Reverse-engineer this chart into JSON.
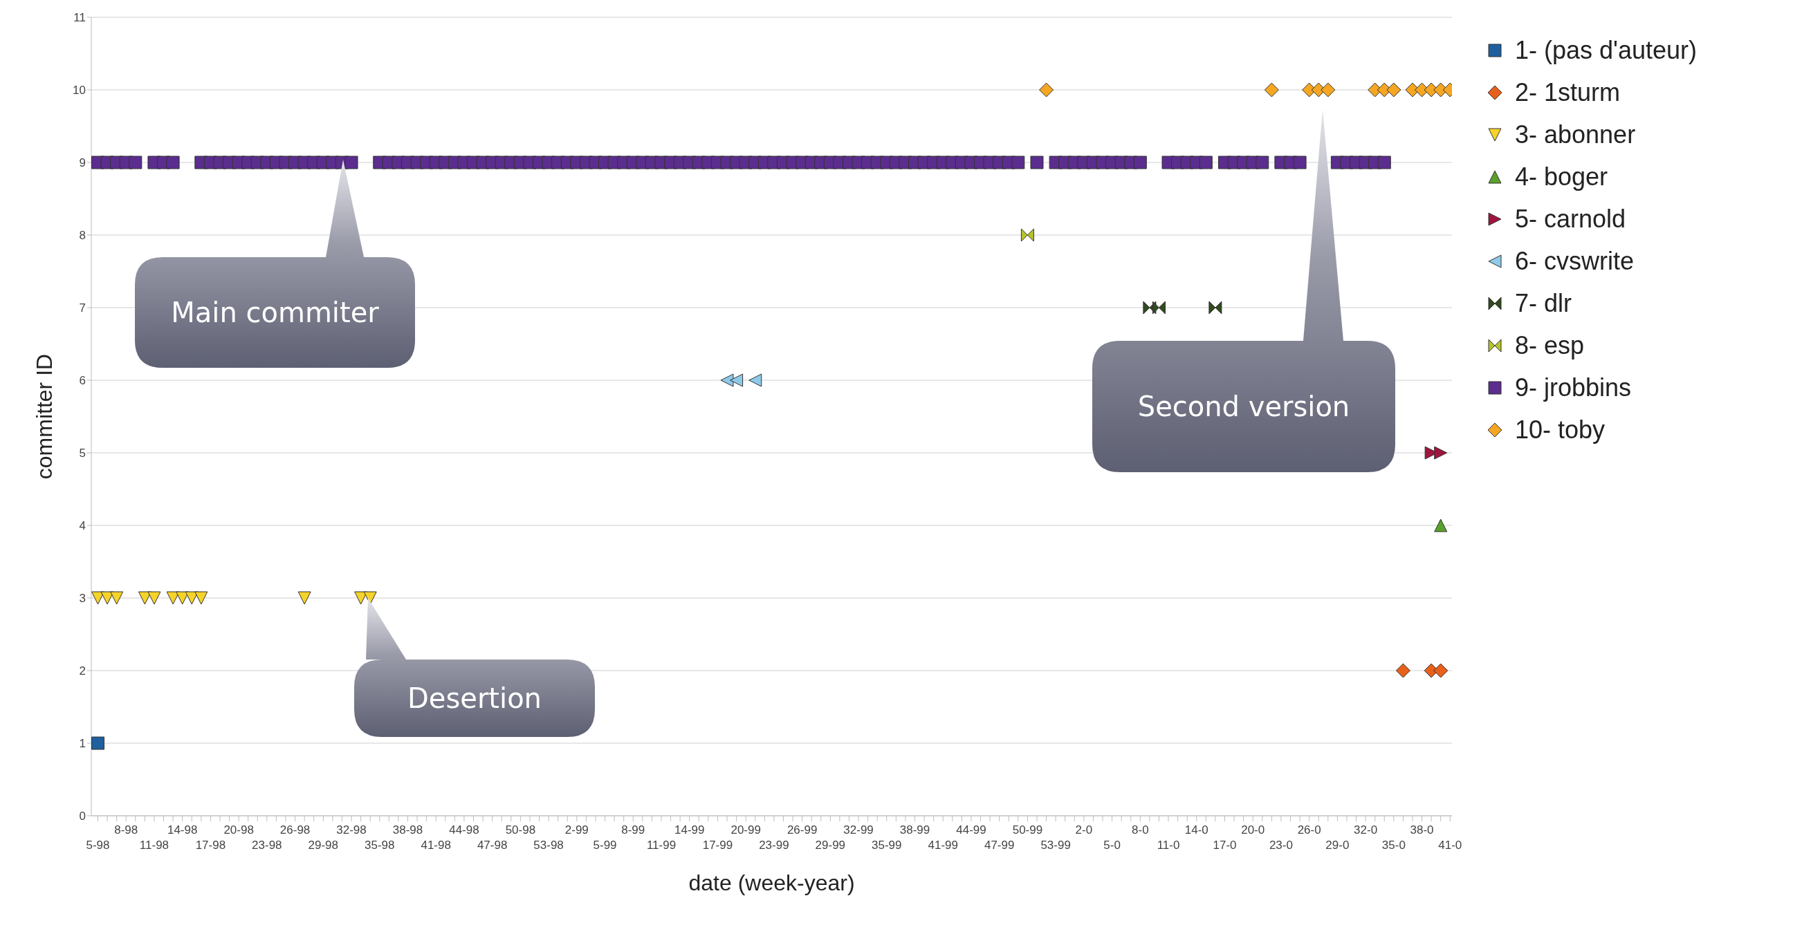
{
  "chart_data": {
    "type": "scatter",
    "xlabel": "date (week-year)",
    "ylabel": "committer ID",
    "categories": [
      "5-98",
      null,
      null,
      "8-98",
      null,
      null,
      "11-98",
      null,
      null,
      "14-98",
      null,
      null,
      "17-98",
      null,
      null,
      "20-98",
      null,
      null,
      "23-98",
      null,
      null,
      "26-98",
      null,
      null,
      "29-98",
      null,
      null,
      "32-98",
      null,
      null,
      "35-98",
      null,
      null,
      "38-98",
      null,
      null,
      "41-98",
      null,
      null,
      "44-98",
      null,
      null,
      "47-98",
      null,
      null,
      "50-98",
      null,
      null,
      "53-98",
      null,
      null,
      "2-99",
      null,
      null,
      "5-99",
      null,
      null,
      "8-99",
      null,
      null,
      "11-99",
      null,
      null,
      "14-99",
      null,
      null,
      "17-99",
      null,
      null,
      "20-99",
      null,
      null,
      "23-99",
      null,
      null,
      "26-99",
      null,
      null,
      "29-99",
      null,
      null,
      "32-99",
      null,
      null,
      "35-99",
      null,
      null,
      "38-99",
      null,
      null,
      "41-99",
      null,
      null,
      "44-99",
      null,
      null,
      "47-99",
      null,
      null,
      "50-99",
      null,
      null,
      "53-99",
      null,
      null,
      "2-0",
      null,
      null,
      "5-0",
      null,
      null,
      "8-0",
      null,
      null,
      "11-0",
      null,
      null,
      "14-0",
      null,
      null,
      "17-0",
      null,
      null,
      "20-0",
      null,
      null,
      "23-0",
      null,
      null,
      "26-0",
      null,
      null,
      "29-0",
      null,
      null,
      "32-0",
      null,
      null,
      "35-0",
      null,
      null,
      "38-0",
      null,
      null,
      "41-0"
    ],
    "ylim": [
      0,
      11
    ],
    "yticks": [
      0,
      1,
      2,
      3,
      4,
      5,
      6,
      7,
      8,
      9,
      10,
      11
    ],
    "grid": "y",
    "legend": "top right",
    "series": [
      {
        "name": "1- (pas d'auteur)",
        "color": "#1f5f9e",
        "marker": "square",
        "values": [
          1,
          null,
          null,
          null,
          null,
          null,
          null,
          null,
          null,
          null,
          null,
          null,
          null,
          null,
          null,
          null,
          null,
          null,
          null,
          null,
          null,
          null,
          null,
          null,
          null,
          null,
          null,
          null,
          null,
          null,
          null,
          null,
          null,
          null,
          null,
          null,
          null,
          null,
          null,
          null,
          null,
          null,
          null,
          null,
          null,
          null,
          null,
          null,
          null,
          null,
          null,
          null,
          null,
          null,
          null,
          null,
          null,
          null,
          null,
          null,
          null,
          null,
          null,
          null,
          null,
          null,
          null,
          null,
          null,
          null,
          null,
          null,
          null,
          null,
          null,
          null,
          null,
          null,
          null,
          null,
          null,
          null,
          null,
          null,
          null,
          null,
          null,
          null,
          null,
          null,
          null,
          null,
          null,
          null,
          null,
          null,
          null,
          null,
          null,
          null,
          null,
          null,
          null,
          null,
          null,
          null,
          null,
          null,
          null,
          null,
          null,
          null,
          null,
          null,
          null,
          null,
          null,
          null,
          null,
          null,
          null,
          null,
          null,
          null,
          null,
          null,
          null,
          null,
          null,
          null,
          null,
          null,
          null,
          null,
          null,
          null,
          null,
          null,
          null,
          null,
          null,
          null,
          null,
          null,
          null
        ]
      },
      {
        "name": "2- 1sturm",
        "color": "#e8601c",
        "marker": "diamond",
        "values": [
          null,
          null,
          null,
          null,
          null,
          null,
          null,
          null,
          null,
          null,
          null,
          null,
          null,
          null,
          null,
          null,
          null,
          null,
          null,
          null,
          null,
          null,
          null,
          null,
          null,
          null,
          null,
          null,
          null,
          null,
          null,
          null,
          null,
          null,
          null,
          null,
          null,
          null,
          null,
          null,
          null,
          null,
          null,
          null,
          null,
          null,
          null,
          null,
          null,
          null,
          null,
          null,
          null,
          null,
          null,
          null,
          null,
          null,
          null,
          null,
          null,
          null,
          null,
          null,
          null,
          null,
          null,
          null,
          null,
          null,
          null,
          null,
          null,
          null,
          null,
          null,
          null,
          null,
          null,
          null,
          null,
          null,
          null,
          null,
          null,
          null,
          null,
          null,
          null,
          null,
          null,
          null,
          null,
          null,
          null,
          null,
          null,
          null,
          null,
          null,
          null,
          null,
          null,
          null,
          null,
          null,
          null,
          null,
          null,
          null,
          null,
          null,
          null,
          null,
          null,
          null,
          null,
          null,
          null,
          null,
          null,
          null,
          null,
          null,
          null,
          null,
          null,
          null,
          null,
          null,
          null,
          null,
          null,
          null,
          null,
          null,
          null,
          null,
          null,
          2,
          null,
          null,
          2,
          2,
          null
        ]
      },
      {
        "name": "3- abonner",
        "color": "#f5d328",
        "marker": "triangle-down",
        "values": [
          3,
          3,
          3,
          null,
          null,
          3,
          3,
          null,
          3,
          3,
          3,
          3,
          null,
          null,
          null,
          null,
          null,
          null,
          null,
          null,
          null,
          null,
          3,
          null,
          null,
          null,
          null,
          null,
          3,
          3,
          null,
          null,
          null,
          null,
          null,
          null,
          null,
          null,
          null,
          null,
          null,
          null,
          null,
          null,
          null,
          null,
          null,
          null,
          null,
          null,
          null,
          null,
          null,
          null,
          null,
          null,
          null,
          null,
          null,
          null,
          null,
          null,
          null,
          null,
          null,
          null,
          null,
          null,
          null,
          null,
          null,
          null,
          null,
          null,
          null,
          null,
          null,
          null,
          null,
          null,
          null,
          null,
          null,
          null,
          null,
          null,
          null,
          null,
          null,
          null,
          null,
          null,
          null,
          null,
          null,
          null,
          null,
          null,
          null,
          null,
          null,
          null,
          null,
          null,
          null,
          null,
          null,
          null,
          null,
          null,
          null,
          null,
          null,
          null,
          null,
          null,
          null,
          null,
          null,
          null,
          null,
          null,
          null,
          null,
          null,
          null,
          null,
          null,
          null,
          null,
          null,
          null,
          null,
          null,
          null,
          null,
          null,
          null,
          null,
          null,
          null,
          null,
          null,
          null,
          null
        ]
      },
      {
        "name": "4- boger",
        "color": "#5aa02c",
        "marker": "triangle",
        "values": [
          null,
          null,
          null,
          null,
          null,
          null,
          null,
          null,
          null,
          null,
          null,
          null,
          null,
          null,
          null,
          null,
          null,
          null,
          null,
          null,
          null,
          null,
          null,
          null,
          null,
          null,
          null,
          null,
          null,
          null,
          null,
          null,
          null,
          null,
          null,
          null,
          null,
          null,
          null,
          null,
          null,
          null,
          null,
          null,
          null,
          null,
          null,
          null,
          null,
          null,
          null,
          null,
          null,
          null,
          null,
          null,
          null,
          null,
          null,
          null,
          null,
          null,
          null,
          null,
          null,
          null,
          null,
          null,
          null,
          null,
          null,
          null,
          null,
          null,
          null,
          null,
          null,
          null,
          null,
          null,
          null,
          null,
          null,
          null,
          null,
          null,
          null,
          null,
          null,
          null,
          null,
          null,
          null,
          null,
          null,
          null,
          null,
          null,
          null,
          null,
          null,
          null,
          null,
          null,
          null,
          null,
          null,
          null,
          null,
          null,
          null,
          null,
          null,
          null,
          null,
          null,
          null,
          null,
          null,
          null,
          null,
          null,
          null,
          null,
          null,
          null,
          null,
          null,
          null,
          null,
          null,
          null,
          null,
          null,
          null,
          null,
          null,
          null,
          null,
          null,
          null,
          null,
          null,
          4,
          null
        ]
      },
      {
        "name": "5- carnold",
        "color": "#a0153e",
        "marker": "triangle-right",
        "values": [
          null,
          null,
          null,
          null,
          null,
          null,
          null,
          null,
          null,
          null,
          null,
          null,
          null,
          null,
          null,
          null,
          null,
          null,
          null,
          null,
          null,
          null,
          null,
          null,
          null,
          null,
          null,
          null,
          null,
          null,
          null,
          null,
          null,
          null,
          null,
          null,
          null,
          null,
          null,
          null,
          null,
          null,
          null,
          null,
          null,
          null,
          null,
          null,
          null,
          null,
          null,
          null,
          null,
          null,
          null,
          null,
          null,
          null,
          null,
          null,
          null,
          null,
          null,
          null,
          null,
          null,
          null,
          null,
          null,
          null,
          null,
          null,
          null,
          null,
          null,
          null,
          null,
          null,
          null,
          null,
          null,
          null,
          null,
          null,
          null,
          null,
          null,
          null,
          null,
          null,
          null,
          null,
          null,
          null,
          null,
          null,
          null,
          null,
          null,
          null,
          null,
          null,
          null,
          null,
          null,
          null,
          null,
          null,
          null,
          null,
          null,
          null,
          null,
          null,
          null,
          null,
          null,
          null,
          null,
          null,
          null,
          null,
          null,
          null,
          null,
          null,
          null,
          null,
          null,
          null,
          null,
          null,
          null,
          null,
          null,
          null,
          null,
          null,
          null,
          null,
          null,
          null,
          5,
          5,
          null
        ]
      },
      {
        "name": "6- cvswrite",
        "color": "#8ecae8",
        "marker": "triangle-left",
        "values": [
          null,
          null,
          null,
          null,
          null,
          null,
          null,
          null,
          null,
          null,
          null,
          null,
          null,
          null,
          null,
          null,
          null,
          null,
          null,
          null,
          null,
          null,
          null,
          null,
          null,
          null,
          null,
          null,
          null,
          null,
          null,
          null,
          null,
          null,
          null,
          null,
          null,
          null,
          null,
          null,
          null,
          null,
          null,
          null,
          null,
          null,
          null,
          null,
          null,
          null,
          null,
          null,
          null,
          null,
          null,
          null,
          null,
          null,
          null,
          null,
          null,
          null,
          null,
          null,
          null,
          null,
          null,
          6,
          6,
          null,
          6,
          null,
          null,
          null,
          null,
          null,
          null,
          null,
          null,
          null,
          null,
          null,
          null,
          null,
          null,
          null,
          null,
          null,
          null,
          null,
          null,
          null,
          null,
          null,
          null,
          null,
          null,
          null,
          null,
          null,
          null,
          null,
          null,
          null,
          null,
          null,
          null,
          null,
          null,
          null,
          null,
          null,
          null,
          null,
          null,
          null,
          null,
          null,
          null,
          null,
          null,
          null,
          null,
          null,
          null,
          null,
          null,
          null,
          null,
          null,
          null,
          null,
          null,
          null,
          null,
          null,
          null,
          null,
          null,
          null,
          null,
          null,
          null,
          null,
          null
        ]
      },
      {
        "name": "7- dlr",
        "color": "#314a1e",
        "values": [
          null,
          null,
          null,
          null,
          null,
          null,
          null,
          null,
          null,
          null,
          null,
          null,
          null,
          null,
          null,
          null,
          null,
          null,
          null,
          null,
          null,
          null,
          null,
          null,
          null,
          null,
          null,
          null,
          null,
          null,
          null,
          null,
          null,
          null,
          null,
          null,
          null,
          null,
          null,
          null,
          null,
          null,
          null,
          null,
          null,
          null,
          null,
          null,
          null,
          null,
          null,
          null,
          null,
          null,
          null,
          null,
          null,
          null,
          null,
          null,
          null,
          null,
          null,
          null,
          null,
          null,
          null,
          null,
          null,
          null,
          null,
          null,
          null,
          null,
          null,
          null,
          null,
          null,
          null,
          null,
          null,
          null,
          null,
          null,
          null,
          null,
          null,
          null,
          null,
          null,
          null,
          null,
          null,
          null,
          null,
          null,
          null,
          null,
          null,
          null,
          null,
          null,
          null,
          null,
          null,
          null,
          null,
          null,
          null,
          null,
          null,
          null,
          7,
          7,
          null,
          null,
          null,
          null,
          null,
          7,
          null,
          null,
          null,
          null,
          null,
          null,
          null,
          null,
          null,
          null,
          null,
          null,
          null,
          null,
          null,
          null,
          null,
          null,
          null,
          null,
          null,
          null,
          null,
          null,
          null
        ]
      },
      {
        "name": "8- esp",
        "color": "#b5c42a",
        "values": [
          null,
          null,
          null,
          null,
          null,
          null,
          null,
          null,
          null,
          null,
          null,
          null,
          null,
          null,
          null,
          null,
          null,
          null,
          null,
          null,
          null,
          null,
          null,
          null,
          null,
          null,
          null,
          null,
          null,
          null,
          null,
          null,
          null,
          null,
          null,
          null,
          null,
          null,
          null,
          null,
          null,
          null,
          null,
          null,
          null,
          null,
          null,
          null,
          null,
          null,
          null,
          null,
          null,
          null,
          null,
          null,
          null,
          null,
          null,
          null,
          null,
          null,
          null,
          null,
          null,
          null,
          null,
          null,
          null,
          null,
          null,
          null,
          null,
          null,
          null,
          null,
          null,
          null,
          null,
          null,
          null,
          null,
          null,
          null,
          null,
          null,
          null,
          null,
          null,
          null,
          null,
          null,
          null,
          null,
          null,
          null,
          null,
          null,
          null,
          8,
          null,
          null,
          null,
          null,
          null,
          null,
          null,
          null,
          null,
          null,
          null,
          null,
          null,
          null,
          null,
          null,
          null,
          null,
          null,
          null,
          null,
          null,
          null,
          null,
          null,
          null,
          null,
          null,
          null,
          null,
          null,
          null,
          null,
          null,
          null,
          null,
          null,
          null,
          null,
          null,
          null,
          null,
          null,
          null,
          null
        ]
      },
      {
        "name": "9- jrobbins",
        "color": "#5b2d8e",
        "marker": "square",
        "values": [
          9,
          9,
          9,
          9,
          9,
          null,
          9,
          9,
          9,
          null,
          null,
          9,
          9,
          9,
          9,
          9,
          9,
          9,
          9,
          9,
          9,
          9,
          9,
          9,
          9,
          9,
          9,
          9,
          null,
          null,
          9,
          9,
          9,
          9,
          9,
          9,
          9,
          9,
          9,
          9,
          9,
          9,
          9,
          9,
          9,
          9,
          9,
          9,
          9,
          9,
          9,
          9,
          9,
          9,
          9,
          9,
          9,
          9,
          9,
          9,
          9,
          9,
          9,
          9,
          9,
          9,
          9,
          9,
          9,
          9,
          9,
          9,
          9,
          9,
          9,
          9,
          9,
          9,
          9,
          9,
          9,
          9,
          9,
          9,
          9,
          9,
          9,
          9,
          9,
          9,
          9,
          9,
          9,
          9,
          9,
          9,
          9,
          9,
          9,
          null,
          9,
          null,
          9,
          9,
          9,
          9,
          9,
          9,
          9,
          9,
          9,
          9,
          null,
          null,
          9,
          9,
          9,
          9,
          9,
          null,
          9,
          9,
          9,
          9,
          9,
          null,
          9,
          9,
          9,
          null,
          null,
          null,
          9,
          9,
          9,
          9,
          9,
          9,
          null,
          null,
          null,
          null,
          null,
          null,
          null
        ]
      },
      {
        "name": "10- toby",
        "color": "#f5a623",
        "marker": "diamond",
        "values": [
          null,
          null,
          null,
          null,
          null,
          null,
          null,
          null,
          null,
          null,
          null,
          null,
          null,
          null,
          null,
          null,
          null,
          null,
          null,
          null,
          null,
          null,
          null,
          null,
          null,
          null,
          null,
          null,
          null,
          null,
          null,
          null,
          null,
          null,
          null,
          null,
          null,
          null,
          null,
          null,
          null,
          null,
          null,
          null,
          null,
          null,
          null,
          null,
          null,
          null,
          null,
          null,
          null,
          null,
          null,
          null,
          null,
          null,
          null,
          null,
          null,
          null,
          null,
          null,
          null,
          null,
          null,
          null,
          null,
          null,
          null,
          null,
          null,
          null,
          null,
          null,
          null,
          null,
          null,
          null,
          null,
          null,
          null,
          null,
          null,
          null,
          null,
          null,
          null,
          null,
          null,
          null,
          null,
          null,
          null,
          null,
          null,
          null,
          null,
          null,
          null,
          10,
          null,
          null,
          null,
          null,
          null,
          null,
          null,
          null,
          null,
          null,
          null,
          null,
          null,
          null,
          null,
          null,
          null,
          null,
          null,
          null,
          null,
          null,
          null,
          10,
          null,
          null,
          null,
          10,
          10,
          10,
          null,
          null,
          null,
          null,
          10,
          10,
          10,
          null,
          10,
          10,
          10,
          10,
          10
        ]
      }
    ],
    "annotations": [
      "Main commiter",
      "Desertion",
      "Second version"
    ]
  }
}
